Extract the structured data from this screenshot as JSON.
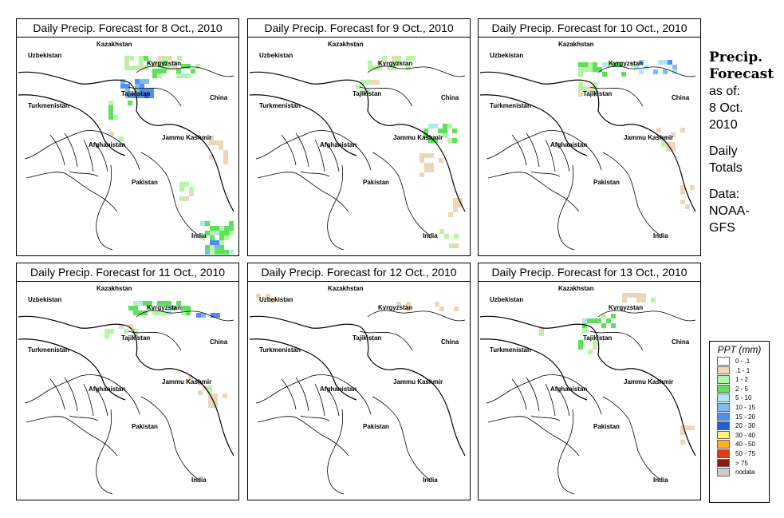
{
  "panels": [
    {
      "title": "Daily Precip. Forecast for  8 Oct., 2010",
      "id": "p1"
    },
    {
      "title": "Daily Precip. Forecast for  9 Oct., 2010",
      "id": "p2"
    },
    {
      "title": "Daily Precip. Forecast for  10 Oct., 2010",
      "id": "p3"
    },
    {
      "title": "Daily Precip. Forecast for  11 Oct., 2010",
      "id": "p4"
    },
    {
      "title": "Daily Precip. Forecast for  12 Oct., 2010",
      "id": "p5"
    },
    {
      "title": "Daily Precip. Forecast for  13 Oct., 2010",
      "id": "p6"
    }
  ],
  "map_labels": {
    "uzbekistan": "Uzbekistan",
    "kazakhstan": "Kazakhstan",
    "kyrgyzstan": "Kyrgyzstan",
    "tajikistan": "Tajikistan",
    "china": "China",
    "turkmenistan": "Turkmenistan",
    "afghanistan": "Afghanistan",
    "jammu_kashmir": "Jammu Kashmir",
    "pakistan": "Pakistan",
    "india": "India"
  },
  "side_info": {
    "title_line1": "Precip.",
    "title_line2": "Forecast",
    "asof_line1": "as of:",
    "asof_line2": "8 Oct.",
    "asof_line3": "2010",
    "totals_line1": "Daily",
    "totals_line2": "Totals",
    "data_line1": "Data:",
    "data_line2": "NOAA-",
    "data_line3": "GFS"
  },
  "legend": {
    "title": "PPT (mm)",
    "items": [
      {
        "label": "0 - .1",
        "color": "#ffffff"
      },
      {
        "label": ".1 - 1",
        "color": "#ecd7bb"
      },
      {
        "label": "1 - 2",
        "color": "#b5f5a6"
      },
      {
        "label": "2 - 5",
        "color": "#5fe05a"
      },
      {
        "label": "5 - 10",
        "color": "#b2e6f2"
      },
      {
        "label": "10 - 15",
        "color": "#80bcf2"
      },
      {
        "label": "15 - 20",
        "color": "#4f8ff0"
      },
      {
        "label": "20 - 30",
        "color": "#1f5fd8"
      },
      {
        "label": "30 - 40",
        "color": "#fff27a"
      },
      {
        "label": "40 - 50",
        "color": "#ffaa2a"
      },
      {
        "label": "50 - 75",
        "color": "#e03a10"
      },
      {
        "label": "> 75",
        "color": "#8a1a10"
      },
      {
        "label": "nodata",
        "color": "#cccccc"
      }
    ]
  }
}
